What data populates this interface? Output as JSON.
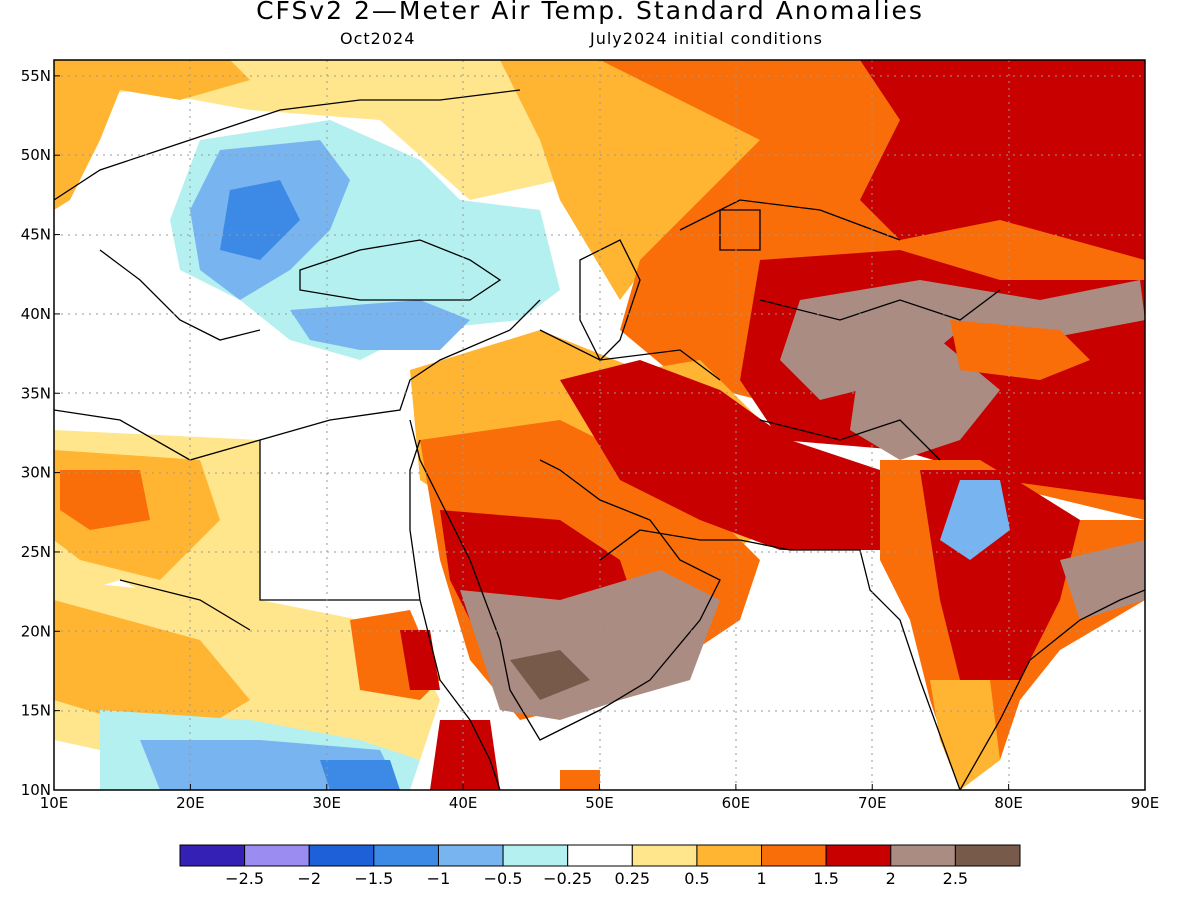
{
  "header": {
    "title": "CFSv2 2—Meter Air Temp. Standard Anomalies",
    "valid": "Oct2024",
    "initial": "July2024 initial conditions"
  },
  "map": {
    "lon_range": [
      10,
      90
    ],
    "lat_range": [
      10,
      56
    ],
    "lon_labels": [
      "10E",
      "20E",
      "30E",
      "40E",
      "50E",
      "60E",
      "70E",
      "80E",
      "90E"
    ],
    "lat_labels": [
      "10N",
      "15N",
      "20N",
      "25N",
      "30N",
      "35N",
      "40N",
      "45N",
      "50N",
      "55N"
    ]
  },
  "legend": {
    "labels": [
      "−2.5",
      "−2",
      "−1.5",
      "−1",
      "−0.5",
      "−0.25",
      "0.25",
      "0.5",
      "1",
      "1.5",
      "2",
      "2.5"
    ],
    "colors": [
      "#3420b4",
      "#9a8cf0",
      "#1e60d8",
      "#3c8ae6",
      "#78b4f0",
      "#b4f0f0",
      "#ffffff",
      "#ffe68c",
      "#ffb432",
      "#fa6e0a",
      "#c80000",
      "#aa8c82",
      "#785a4b"
    ]
  },
  "colors": {
    "neg_strong": "#3c8ae6",
    "neg_mid": "#78b4f0",
    "neg_weak": "#b4f0f0",
    "pos_025": "#ffe68c",
    "pos_05": "#ffb432",
    "pos_1": "#fa6e0a",
    "pos_15": "#c80000",
    "pos_2": "#aa8c82",
    "pos_25": "#785a4b"
  }
}
